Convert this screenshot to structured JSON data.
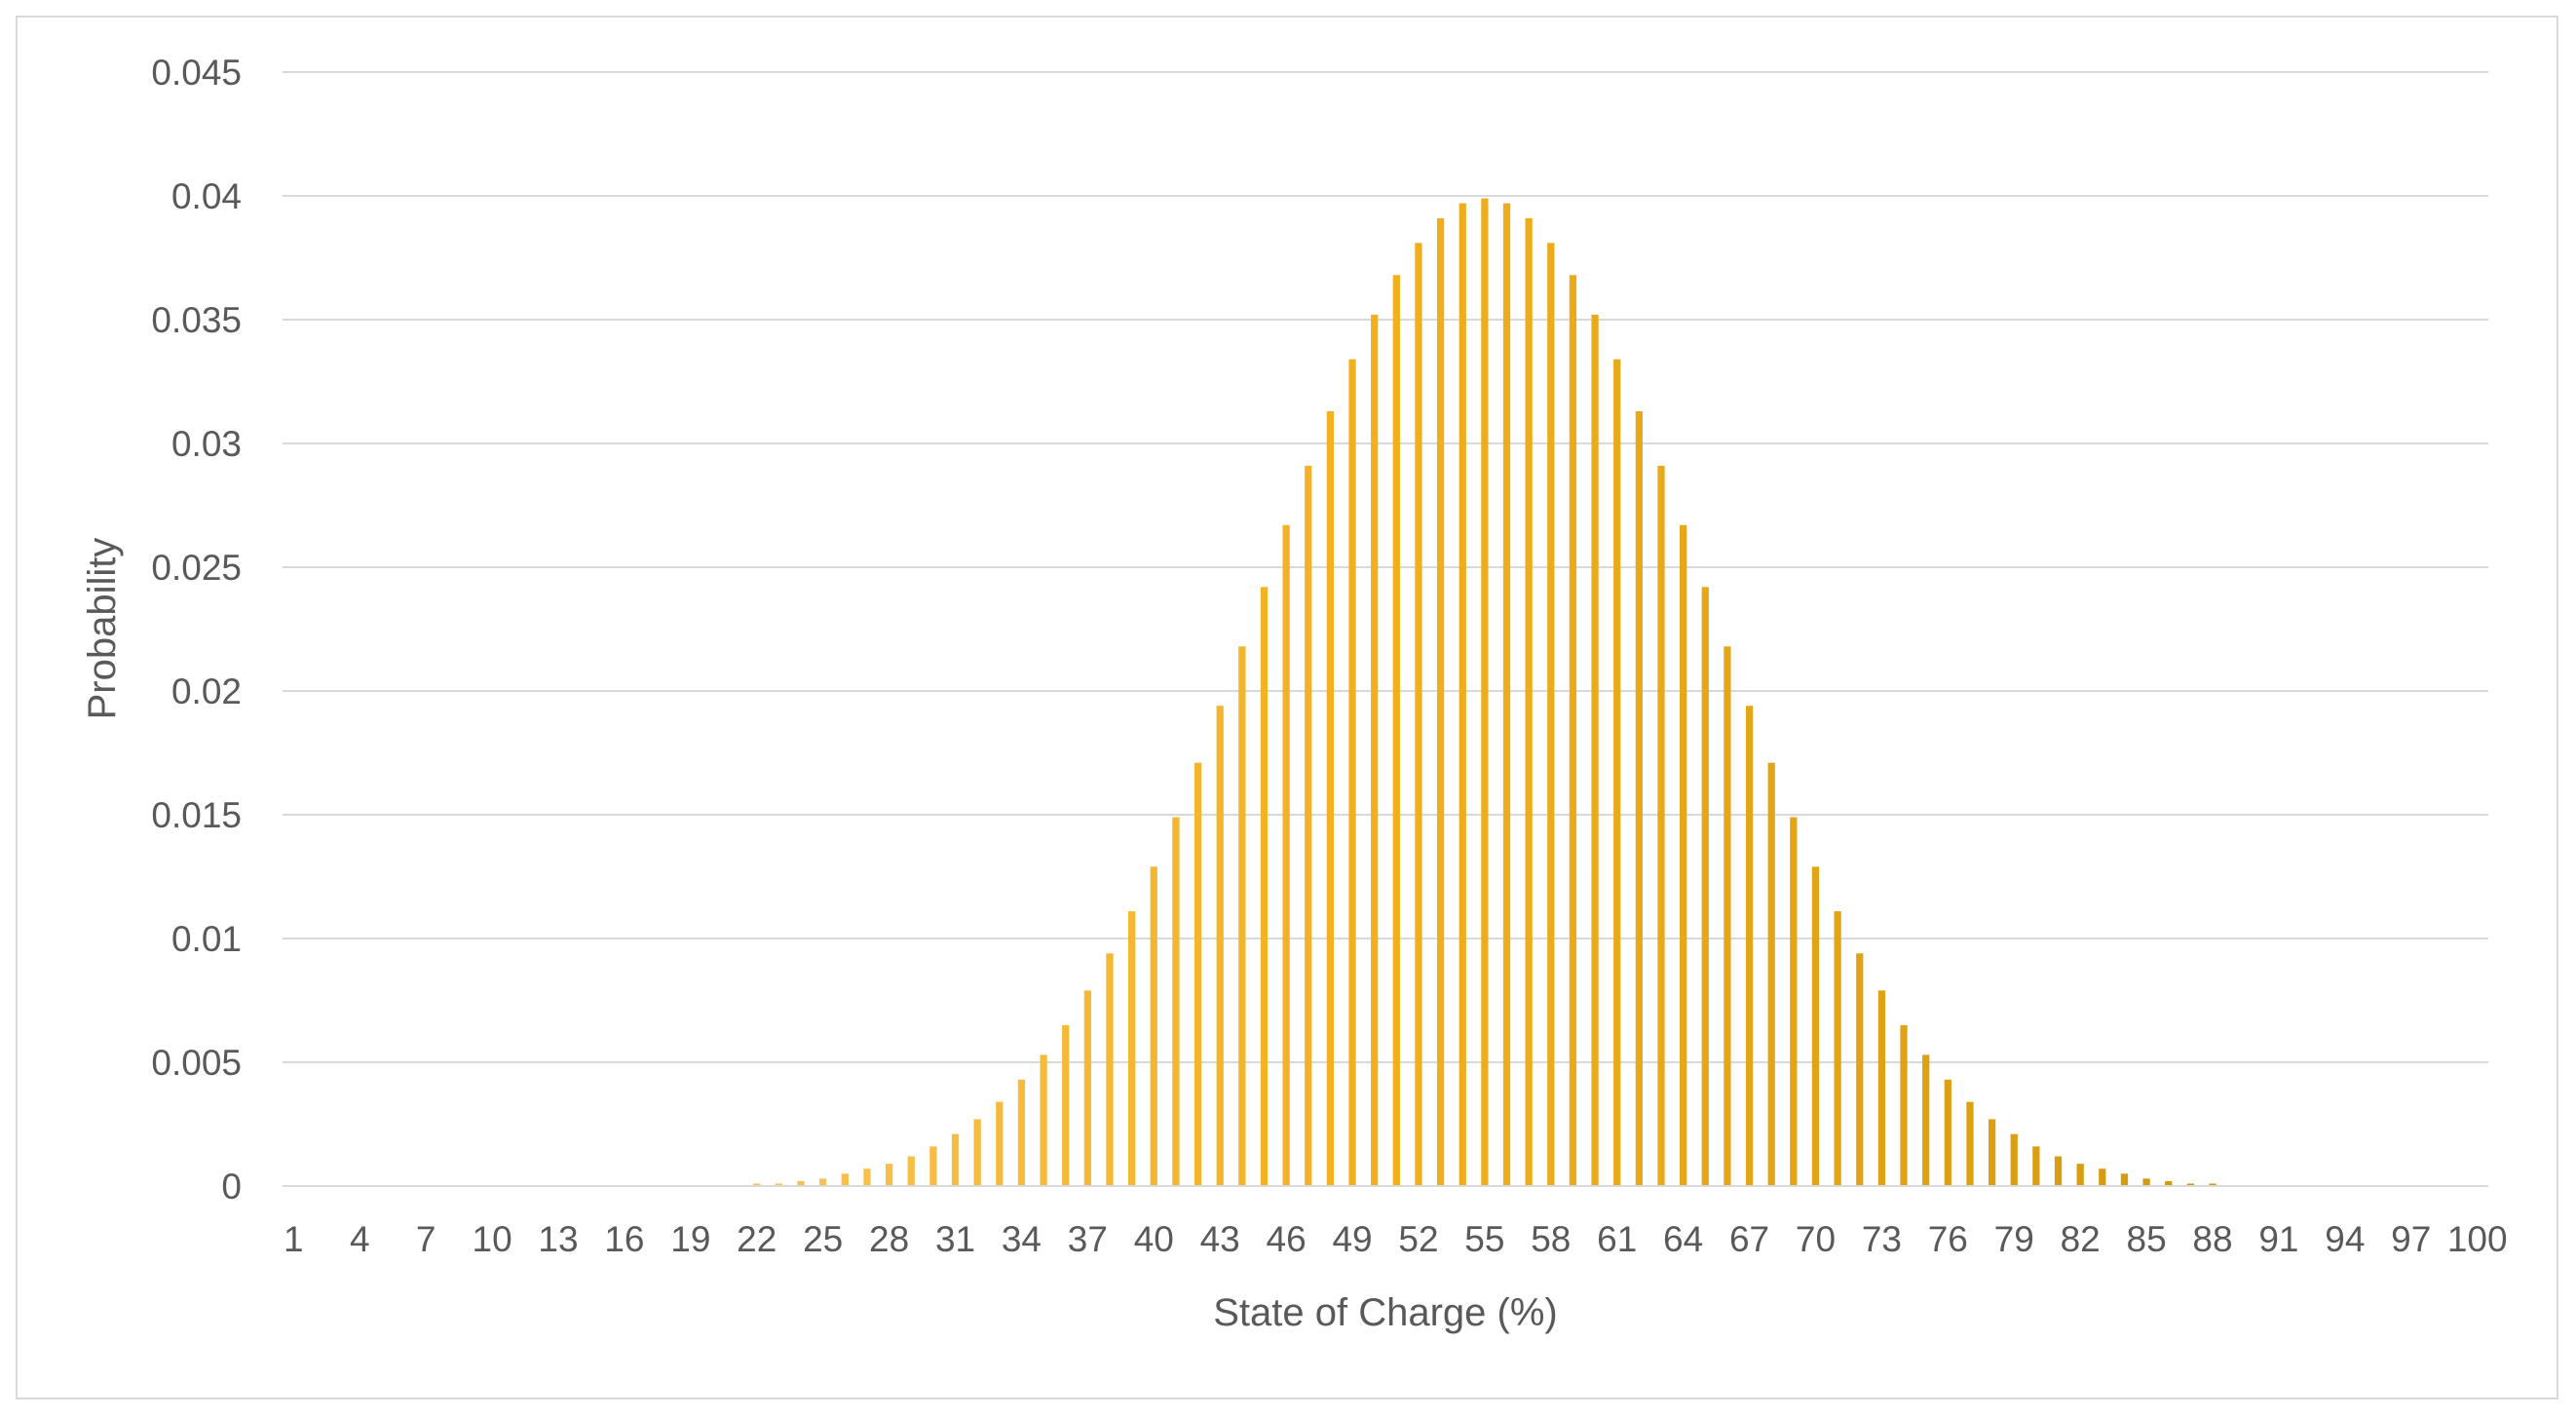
{
  "chart_data": {
    "type": "bar",
    "title": "",
    "xlabel": "State of Charge (%)",
    "ylabel": "Probability",
    "ylim": [
      0,
      0.045
    ],
    "yticks": [
      "0",
      "0.005",
      "0.01",
      "0.015",
      "0.02",
      "0.025",
      "0.03",
      "0.035",
      "0.04",
      "0.045"
    ],
    "xtick_labels": [
      "1",
      "4",
      "7",
      "10",
      "13",
      "16",
      "19",
      "22",
      "25",
      "28",
      "31",
      "34",
      "37",
      "40",
      "43",
      "46",
      "49",
      "52",
      "55",
      "58",
      "61",
      "64",
      "67",
      "70",
      "73",
      "76",
      "79",
      "82",
      "85",
      "88",
      "91",
      "94",
      "97",
      "100"
    ],
    "grid": true,
    "legend": "none",
    "bar_color_gradient": [
      "#ffd27f",
      "#f2b01e",
      "#c8920a"
    ],
    "categories": [
      1,
      2,
      3,
      4,
      5,
      6,
      7,
      8,
      9,
      10,
      11,
      12,
      13,
      14,
      15,
      16,
      17,
      18,
      19,
      20,
      21,
      22,
      23,
      24,
      25,
      26,
      27,
      28,
      29,
      30,
      31,
      32,
      33,
      34,
      35,
      36,
      37,
      38,
      39,
      40,
      41,
      42,
      43,
      44,
      45,
      46,
      47,
      48,
      49,
      50,
      51,
      52,
      53,
      54,
      55,
      56,
      57,
      58,
      59,
      60,
      61,
      62,
      63,
      64,
      65,
      66,
      67,
      68,
      69,
      70,
      71,
      72,
      73,
      74,
      75,
      76,
      77,
      78,
      79,
      80,
      81,
      82,
      83,
      84,
      85,
      86,
      87,
      88,
      89,
      90,
      91,
      92,
      93,
      94,
      95,
      96,
      97,
      98,
      99,
      100
    ],
    "values": [
      0.0,
      0.0,
      0.0,
      0.0,
      0.0,
      0.0,
      0.0,
      0.0,
      0.0,
      0.0,
      0.0,
      0.0,
      0.0,
      0.0,
      0.0,
      0.0,
      0.0,
      0.0,
      0.0,
      0.0,
      0.0,
      0.0001,
      0.0001,
      0.0002,
      0.0003,
      0.0005,
      0.0007,
      0.0009,
      0.0012,
      0.0016,
      0.0021,
      0.0027,
      0.0034,
      0.0043,
      0.0053,
      0.0065,
      0.0079,
      0.0094,
      0.0111,
      0.0129,
      0.0149,
      0.0171,
      0.0194,
      0.0218,
      0.0242,
      0.0267,
      0.0291,
      0.0313,
      0.0334,
      0.0352,
      0.0368,
      0.0381,
      0.0391,
      0.0397,
      0.0399,
      0.0397,
      0.0391,
      0.0381,
      0.0368,
      0.0352,
      0.0334,
      0.0313,
      0.0291,
      0.0267,
      0.0242,
      0.0218,
      0.0194,
      0.0171,
      0.0149,
      0.0129,
      0.0111,
      0.0094,
      0.0079,
      0.0065,
      0.0053,
      0.0043,
      0.0034,
      0.0027,
      0.0021,
      0.0016,
      0.0012,
      0.0009,
      0.0007,
      0.0005,
      0.0003,
      0.0002,
      0.0001,
      0.0001,
      0.0,
      0.0,
      0.0,
      0.0,
      0.0,
      0.0,
      0.0,
      0.0,
      0.0,
      0.0,
      0.0,
      0.0
    ]
  }
}
